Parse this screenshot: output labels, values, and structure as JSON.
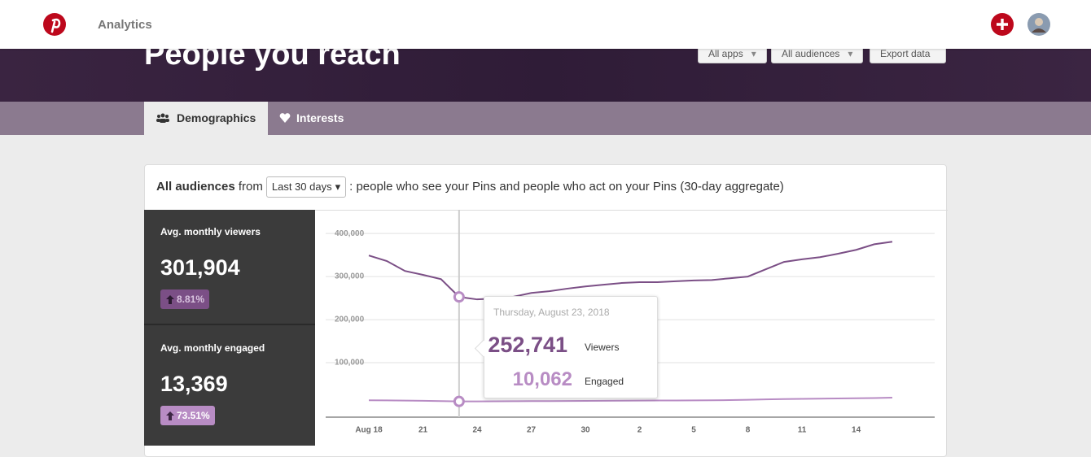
{
  "topbar": {
    "title": "Analytics"
  },
  "header": {
    "title": "People you reach",
    "buttons": [
      "All apps",
      "All audiences",
      "Export data"
    ]
  },
  "tabs": [
    "Demographics",
    "Interests"
  ],
  "card": {
    "audience": "All audiences",
    "from": "from",
    "range": "Last 30 days",
    "description": ": people who see your Pins and people who act on your Pins (30-day aggregate)"
  },
  "stats": [
    {
      "label": "Avg. monthly viewers",
      "value": "301,904",
      "change": "8.81%"
    },
    {
      "label": "Avg. monthly engaged",
      "value": "13,369",
      "change": "73.51%"
    }
  ],
  "tooltip": {
    "date": "Thursday, August 23, 2018",
    "items": [
      {
        "value": "252,741",
        "label": "Viewers"
      },
      {
        "value": "10,062",
        "label": "Engaged"
      }
    ]
  },
  "chart_data": {
    "type": "line",
    "categories": [
      "Aug 18",
      null,
      null,
      "21",
      null,
      null,
      "24",
      null,
      null,
      "27",
      null,
      null,
      "30",
      null,
      null,
      "2",
      null,
      null,
      "5",
      null,
      null,
      "8",
      null,
      null,
      "11",
      null,
      null,
      "14",
      null,
      null
    ],
    "series": [
      {
        "name": "Viewers",
        "color": "#7b4f86",
        "values": [
          349000,
          336000,
          313000,
          304000,
          294000,
          252741,
          247000,
          249000,
          253000,
          262000,
          266000,
          272000,
          277000,
          281000,
          285000,
          287000,
          287000,
          289000,
          291000,
          292000,
          296000,
          300000,
          317000,
          334000,
          340000,
          345000,
          353000,
          362000,
          375000,
          381000
        ]
      },
      {
        "name": "Engaged",
        "color": "#b88cc4",
        "values": [
          12800,
          12500,
          12000,
          11500,
          11000,
          10062,
          10200,
          10400,
          10600,
          10800,
          11000,
          11200,
          11400,
          11600,
          11800,
          12000,
          12200,
          12400,
          12600,
          12800,
          13200,
          14000,
          15000,
          15500,
          16000,
          16500,
          17000,
          17500,
          18000,
          19000
        ]
      }
    ],
    "ylim": [
      -26400,
      455000
    ],
    "yticks": [
      {
        "value": 100000,
        "label": "100,000"
      },
      {
        "value": 200000,
        "label": "200,000"
      },
      {
        "value": 300000,
        "label": "300,000"
      },
      {
        "value": 400000,
        "label": "400,000"
      }
    ],
    "grid": true,
    "highlight_index": 5
  }
}
